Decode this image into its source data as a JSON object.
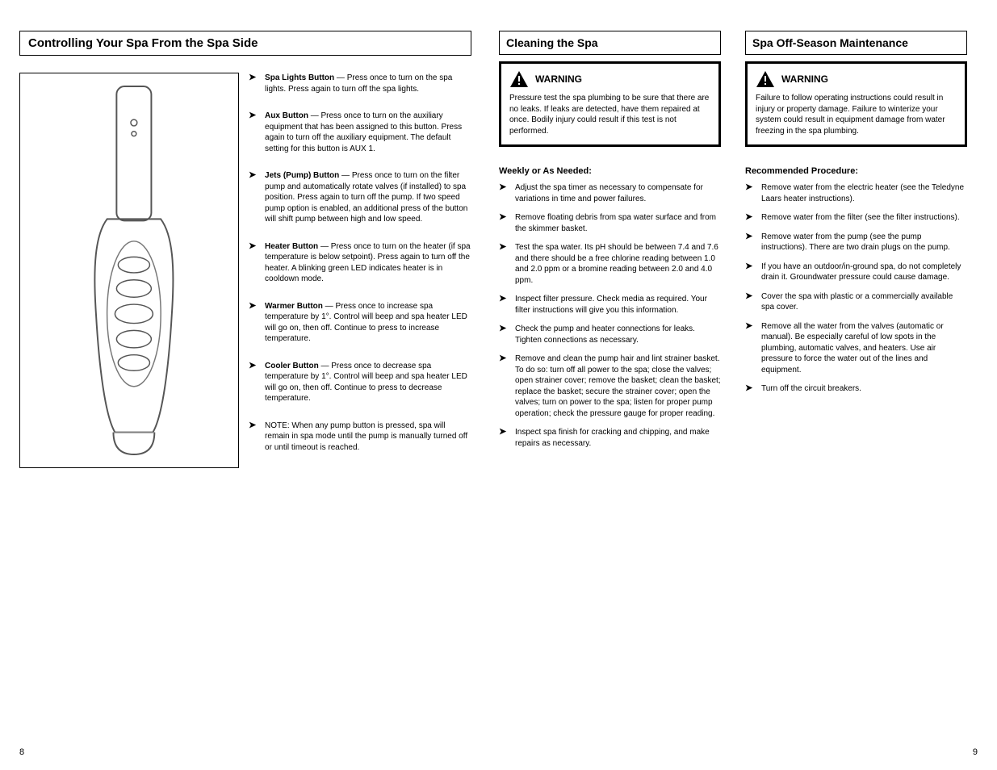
{
  "title": "Controlling Your Spa From the Spa Side",
  "desc": [
    {
      "hd": "Spa Lights Button",
      "body": " — Press once to turn on the spa lights. Press again to turn off the spa lights."
    },
    {
      "hd": "Aux Button",
      "body": " — Press once to turn on the auxiliary equipment that has been assigned to this button. Press again to turn off the auxiliary equipment. The default setting for this button is AUX 1."
    },
    {
      "hd": "Jets (Pump) Button",
      "body": " — Press once to turn on the filter pump and automatically rotate valves (if installed) to spa position. Press again to turn off the pump. If two speed pump option is enabled, an additional press of the button will shift pump between high and low speed."
    },
    {
      "hd": "Heater Button",
      "body": " — Press once to turn on the heater (if spa temperature is below setpoint). Press again to turn off the heater. A blinking green LED indicates heater is in cooldown mode."
    },
    {
      "hd": "Warmer Button",
      "body": " — Press once to increase spa temperature by 1°. Control will beep and spa heater LED will go on, then off. Continue to press to increase temperature."
    },
    {
      "hd": "Cooler Button",
      "body": " — Press once to decrease spa temperature by 1°. Control will beep and spa heater LED will go on, then off. Continue to press to decrease temperature."
    },
    {
      "hd": "",
      "body": "NOTE: When any pump button is pressed, spa will remain in spa mode until the pump is manually turned off or until timeout is reached."
    }
  ],
  "col_clean": {
    "title": "Cleaning the Spa",
    "warning_label": "WARNING",
    "warning_body": "Pressure test the spa plumbing to be sure that there are no leaks. If leaks are detected, have them repaired at once. Bodily injury could result if this test is not performed.",
    "subhead": "Weekly or As Needed:",
    "bullets": [
      "Adjust the spa timer as necessary to compensate for variations in time and power failures.",
      "Remove floating debris from spa water surface and from the skimmer basket.",
      "Test the spa water. Its pH should be between 7.4 and 7.6 and there should be a free chlorine reading between 1.0 and 2.0 ppm or a bromine reading between 2.0 and 4.0 ppm.",
      "Inspect filter pressure. Check media as required. Your filter instructions will give you this information.",
      "Check the pump and heater connections for leaks. Tighten connections as necessary.",
      "Remove and clean the pump hair and lint strainer basket. To do so: turn off all power to the spa; close the valves; open strainer cover; remove the basket; clean the basket; replace the basket; secure the strainer cover; open the valves; turn on power to the spa; listen for proper pump operation; check the pressure gauge for proper reading.",
      "Inspect spa finish for cracking and chipping, and make repairs as necessary."
    ]
  },
  "col_maint": {
    "title": "Spa Off-Season Maintenance",
    "warning_label": "WARNING",
    "warning_body": "Failure to follow operating instructions could result in injury or property damage. Failure to winterize your system could result in equipment damage from water freezing in the spa plumbing.",
    "subhead": "Recommended Procedure:",
    "bullets": [
      "Remove water from the electric heater (see the Teledyne Laars heater instructions).",
      "Remove water from the filter (see the filter instructions).",
      "Remove water from the pump (see the pump instructions). There are two drain plugs on the pump.",
      "If you have an outdoor/in-ground spa, do not completely drain it. Groundwater pressure could cause damage.",
      "Cover the spa with plastic or a commercially available spa cover.",
      "Remove all the water from the valves (automatic or manual). Be especially careful of low spots in the plumbing, automatic valves, and heaters. Use air pressure to force the water out of the lines and equipment.",
      "Turn off the circuit breakers."
    ]
  },
  "page_left": "8",
  "page_right": "9"
}
